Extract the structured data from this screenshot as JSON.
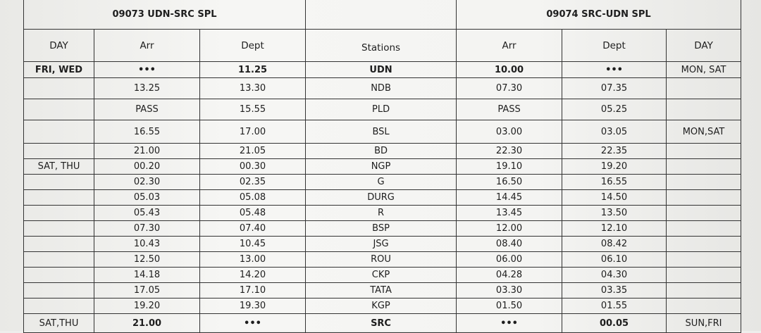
{
  "titles": {
    "left": "09073 UDN-SRC SPL",
    "right": "09074 SRC-UDN SPL"
  },
  "headers": [
    "DAY",
    "Arr",
    "Dept",
    "Stations",
    "Arr",
    "Dept",
    "DAY"
  ],
  "rows": [
    [
      "FRI, WED",
      "•••",
      "11.25",
      "UDN",
      "10.00",
      "•••",
      "MON, SAT"
    ],
    [
      "",
      "13.25",
      "13.30",
      "NDB",
      "07.30",
      "07.35",
      ""
    ],
    [
      "",
      "PASS",
      "15.55",
      "PLD",
      "PASS",
      "05.25",
      ""
    ],
    [
      "",
      "16.55",
      "17.00",
      "BSL",
      "03.00",
      "03.05",
      "MON,SAT"
    ],
    [
      "",
      "21.00",
      "21.05",
      "BD",
      "22.30",
      "22.35",
      ""
    ],
    [
      "SAT, THU",
      "00.20",
      "00.30",
      "NGP",
      "19.10",
      "19.20",
      ""
    ],
    [
      "",
      "02.30",
      "02.35",
      "G",
      "16.50",
      "16.55",
      ""
    ],
    [
      "",
      "05.03",
      "05.08",
      "DURG",
      "14.45",
      "14.50",
      ""
    ],
    [
      "",
      "05.43",
      "05.48",
      "R",
      "13.45",
      "13.50",
      ""
    ],
    [
      "",
      "07.30",
      "07.40",
      "BSP",
      "12.00",
      "12.10",
      ""
    ],
    [
      "",
      "10.43",
      "10.45",
      "JSG",
      "08.40",
      "08.42",
      ""
    ],
    [
      "",
      "12.50",
      "13.00",
      "ROU",
      "06.00",
      "06.10",
      ""
    ],
    [
      "",
      "14.18",
      "14.20",
      "CKP",
      "04.28",
      "04.30",
      ""
    ],
    [
      "",
      "17.05",
      "17.10",
      "TATA",
      "03.30",
      "03.35",
      ""
    ],
    [
      "",
      "19.20",
      "19.30",
      "KGP",
      "01.50",
      "01.55",
      ""
    ],
    [
      "SAT,THU",
      "21.00",
      "•••",
      "SRC",
      "•••",
      "00.05",
      "SUN,FRI"
    ]
  ]
}
